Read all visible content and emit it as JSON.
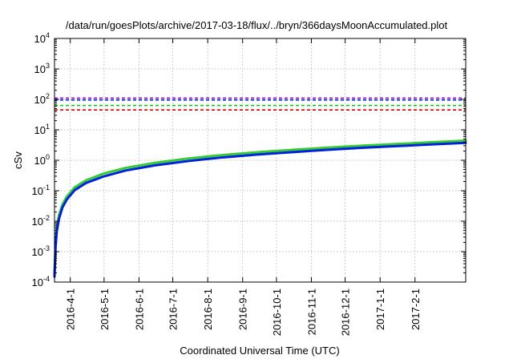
{
  "chart_data": {
    "type": "line",
    "title": "/data/run/goesPlots/archive/2017-03-18/flux/../bryn/366daysMoonAccumulated.plot",
    "xlabel": "Coordinated Universal Time (UTC)",
    "ylabel": "cSv",
    "y_scale": "log",
    "ylim": [
      0.0001,
      10000
    ],
    "xlim": [
      "2016-03-18",
      "2017-03-18"
    ],
    "grid": true,
    "y_ticks": [
      {
        "base": "10",
        "exp": "-4",
        "value": 0.0001
      },
      {
        "base": "10",
        "exp": "-3",
        "value": 0.001
      },
      {
        "base": "10",
        "exp": "-2",
        "value": 0.01
      },
      {
        "base": "10",
        "exp": "-1",
        "value": 0.1
      },
      {
        "base": "10",
        "exp": "0",
        "value": 1
      },
      {
        "base": "10",
        "exp": "1",
        "value": 10
      },
      {
        "base": "10",
        "exp": "2",
        "value": 100
      },
      {
        "base": "10",
        "exp": "3",
        "value": 1000
      },
      {
        "base": "10",
        "exp": "4",
        "value": 10000
      }
    ],
    "x_ticks": [
      "2016-4-1",
      "2016-5-1",
      "2016-6-1",
      "2016-7-1",
      "2016-8-1",
      "2016-9-1",
      "2016-10-1",
      "2016-11-1",
      "2016-12-1",
      "2017-1-1",
      "2017-2-1"
    ],
    "reference_lines": [
      {
        "value": 110,
        "color": "#9400d3",
        "style": "dashed"
      },
      {
        "value": 95,
        "color": "#0033cc",
        "style": "dashed"
      },
      {
        "value": 63,
        "color": "#00cc00",
        "style": "dashed"
      },
      {
        "value": 45,
        "color": "#dd0000",
        "style": "dashed"
      }
    ],
    "series": [
      {
        "color": "#33cc33",
        "width": 3,
        "x": [
          "2016-03-18",
          "2016-03-19",
          "2016-03-20",
          "2016-03-22",
          "2016-03-25",
          "2016-03-29",
          "2016-04-05",
          "2016-04-15",
          "2016-04-30",
          "2016-05-20",
          "2016-06-15",
          "2016-07-15",
          "2016-08-15",
          "2016-09-15",
          "2016-10-15",
          "2016-11-15",
          "2016-12-15",
          "2017-01-15",
          "2017-02-15",
          "2017-03-18"
        ],
        "y": [
          0.0002,
          0.002,
          0.006,
          0.016,
          0.035,
          0.065,
          0.13,
          0.22,
          0.36,
          0.56,
          0.82,
          1.15,
          1.5,
          1.85,
          2.2,
          2.6,
          3.0,
          3.4,
          3.9,
          4.4
        ]
      },
      {
        "color": "#0022dd",
        "width": 3,
        "x": [
          "2016-03-18",
          "2016-03-19",
          "2016-03-20",
          "2016-03-22",
          "2016-03-25",
          "2016-03-29",
          "2016-04-05",
          "2016-04-15",
          "2016-04-30",
          "2016-05-20",
          "2016-06-15",
          "2016-07-15",
          "2016-08-15",
          "2016-09-15",
          "2016-10-15",
          "2016-11-15",
          "2016-12-15",
          "2017-01-15",
          "2017-02-15",
          "2017-03-18"
        ],
        "y": [
          0.00015,
          0.0015,
          0.0045,
          0.012,
          0.028,
          0.052,
          0.105,
          0.18,
          0.29,
          0.46,
          0.68,
          0.95,
          1.25,
          1.55,
          1.85,
          2.2,
          2.55,
          2.9,
          3.3,
          3.75
        ]
      }
    ]
  }
}
